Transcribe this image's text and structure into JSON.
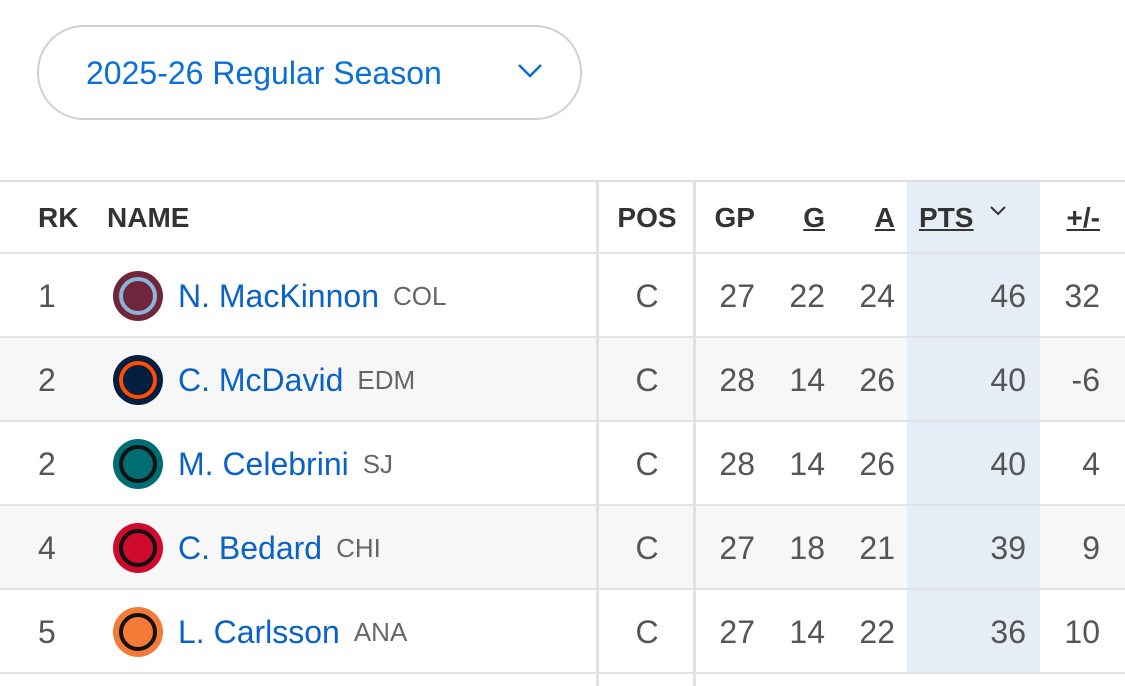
{
  "filter": {
    "season": "2025-26 Regular Season"
  },
  "table": {
    "columns": [
      "RK",
      "NAME",
      "POS",
      "GP",
      "G",
      "A",
      "PTS",
      "+/-"
    ],
    "rows": [
      {
        "rank": 1,
        "name": "N. MacKinnon",
        "team": "COL",
        "pos": "C",
        "gp": 27,
        "g": 22,
        "a": 24,
        "pts": 46,
        "plus_minus": 32
      },
      {
        "rank": 2,
        "name": "C. McDavid",
        "team": "EDM",
        "pos": "C",
        "gp": 28,
        "g": 14,
        "a": 26,
        "pts": 40,
        "plus_minus": -6
      },
      {
        "rank": 2,
        "name": "M. Celebrini",
        "team": "SJ",
        "pos": "C",
        "gp": 28,
        "g": 14,
        "a": 26,
        "pts": 40,
        "plus_minus": 4
      },
      {
        "rank": 4,
        "name": "C. Bedard",
        "team": "CHI",
        "pos": "C",
        "gp": 27,
        "g": 18,
        "a": 21,
        "pts": 39,
        "plus_minus": 9
      },
      {
        "rank": 5,
        "name": "L. Carlsson",
        "team": "ANA",
        "pos": "C",
        "gp": 27,
        "g": 14,
        "a": 22,
        "pts": 36,
        "plus_minus": 10
      }
    ]
  }
}
